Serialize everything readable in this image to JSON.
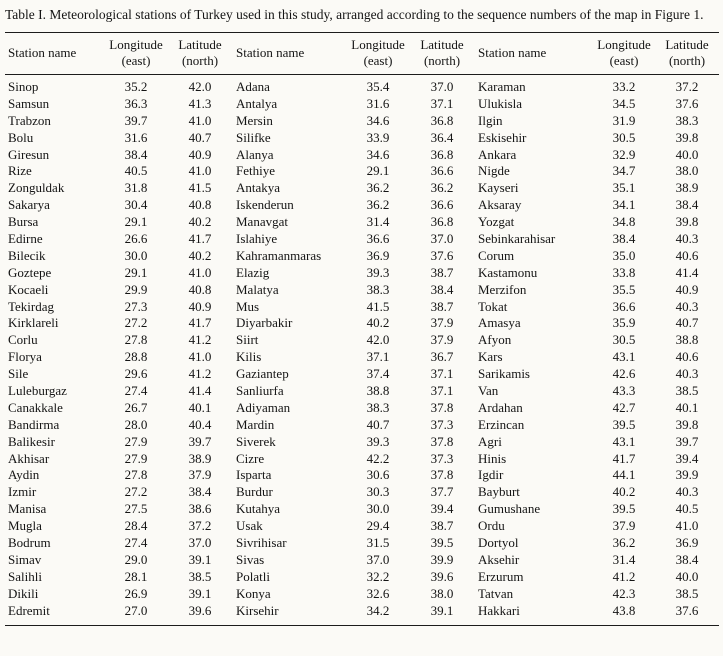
{
  "caption": "Table I. Meteorological stations of Turkey used in this study, arranged according to the sequence numbers of the map in Figure 1.",
  "table": {
    "headers": {
      "station": "Station name",
      "longitude_line1": "Longitude",
      "longitude_line2": "(east)",
      "latitude_line1": "Latitude",
      "latitude_line2": "(north)"
    },
    "groups": [
      {
        "rows": [
          [
            "Sinop",
            "35.2",
            "42.0"
          ],
          [
            "Samsun",
            "36.3",
            "41.3"
          ],
          [
            "Trabzon",
            "39.7",
            "41.0"
          ],
          [
            "Bolu",
            "31.6",
            "40.7"
          ],
          [
            "Giresun",
            "38.4",
            "40.9"
          ],
          [
            "Rize",
            "40.5",
            "41.0"
          ],
          [
            "Zonguldak",
            "31.8",
            "41.5"
          ],
          [
            "Sakarya",
            "30.4",
            "40.8"
          ],
          [
            "Bursa",
            "29.1",
            "40.2"
          ],
          [
            "Edirne",
            "26.6",
            "41.7"
          ],
          [
            "Bilecik",
            "30.0",
            "40.2"
          ],
          [
            "Goztepe",
            "29.1",
            "41.0"
          ],
          [
            "Kocaeli",
            "29.9",
            "40.8"
          ],
          [
            "Tekirdag",
            "27.3",
            "40.9"
          ],
          [
            "Kirklareli",
            "27.2",
            "41.7"
          ],
          [
            "Corlu",
            "27.8",
            "41.2"
          ],
          [
            "Florya",
            "28.8",
            "41.0"
          ],
          [
            "Sile",
            "29.6",
            "41.2"
          ],
          [
            "Luleburgaz",
            "27.4",
            "41.4"
          ],
          [
            "Canakkale",
            "26.7",
            "40.1"
          ],
          [
            "Bandirma",
            "28.0",
            "40.4"
          ],
          [
            "Balikesir",
            "27.9",
            "39.7"
          ],
          [
            "Akhisar",
            "27.9",
            "38.9"
          ],
          [
            "Aydin",
            "27.8",
            "37.9"
          ],
          [
            "Izmir",
            "27.2",
            "38.4"
          ],
          [
            "Manisa",
            "27.5",
            "38.6"
          ],
          [
            "Mugla",
            "28.4",
            "37.2"
          ],
          [
            "Bodrum",
            "27.4",
            "37.0"
          ],
          [
            "Simav",
            "29.0",
            "39.1"
          ],
          [
            "Salihli",
            "28.1",
            "38.5"
          ],
          [
            "Dikili",
            "26.9",
            "39.1"
          ],
          [
            "Edremit",
            "27.0",
            "39.6"
          ]
        ]
      },
      {
        "rows": [
          [
            "Adana",
            "35.4",
            "37.0"
          ],
          [
            "Antalya",
            "31.6",
            "37.1"
          ],
          [
            "Mersin",
            "34.6",
            "36.8"
          ],
          [
            "Silifke",
            "33.9",
            "36.4"
          ],
          [
            "Alanya",
            "34.6",
            "36.8"
          ],
          [
            "Fethiye",
            "29.1",
            "36.6"
          ],
          [
            "Antakya",
            "36.2",
            "36.2"
          ],
          [
            "Iskenderun",
            "36.2",
            "36.6"
          ],
          [
            "Manavgat",
            "31.4",
            "36.8"
          ],
          [
            "Islahiye",
            "36.6",
            "37.0"
          ],
          [
            "Kahramanmaras",
            "36.9",
            "37.6"
          ],
          [
            "Elazig",
            "39.3",
            "38.7"
          ],
          [
            "Malatya",
            "38.3",
            "38.4"
          ],
          [
            "Mus",
            "41.5",
            "38.7"
          ],
          [
            "Diyarbakir",
            "40.2",
            "37.9"
          ],
          [
            "Siirt",
            "42.0",
            "37.9"
          ],
          [
            "Kilis",
            "37.1",
            "36.7"
          ],
          [
            "Gaziantep",
            "37.4",
            "37.1"
          ],
          [
            "Sanliurfa",
            "38.8",
            "37.1"
          ],
          [
            "Adiyaman",
            "38.3",
            "37.8"
          ],
          [
            "Mardin",
            "40.7",
            "37.3"
          ],
          [
            "Siverek",
            "39.3",
            "37.8"
          ],
          [
            "Cizre",
            "42.2",
            "37.3"
          ],
          [
            "Isparta",
            "30.6",
            "37.8"
          ],
          [
            "Burdur",
            "30.3",
            "37.7"
          ],
          [
            "Kutahya",
            "30.0",
            "39.4"
          ],
          [
            "Usak",
            "29.4",
            "38.7"
          ],
          [
            "Sivrihisar",
            "31.5",
            "39.5"
          ],
          [
            "Sivas",
            "37.0",
            "39.9"
          ],
          [
            "Polatli",
            "32.2",
            "39.6"
          ],
          [
            "Konya",
            "32.6",
            "38.0"
          ],
          [
            "Kirsehir",
            "34.2",
            "39.1"
          ]
        ]
      },
      {
        "rows": [
          [
            "Karaman",
            "33.2",
            "37.2"
          ],
          [
            "Ulukisla",
            "34.5",
            "37.6"
          ],
          [
            "Ilgin",
            "31.9",
            "38.3"
          ],
          [
            "Eskisehir",
            "30.5",
            "39.8"
          ],
          [
            "Ankara",
            "32.9",
            "40.0"
          ],
          [
            "Nigde",
            "34.7",
            "38.0"
          ],
          [
            "Kayseri",
            "35.1",
            "38.9"
          ],
          [
            "Aksaray",
            "34.1",
            "38.4"
          ],
          [
            "Yozgat",
            "34.8",
            "39.8"
          ],
          [
            "Sebinkarahisar",
            "38.4",
            "40.3"
          ],
          [
            "Corum",
            "35.0",
            "40.6"
          ],
          [
            "Kastamonu",
            "33.8",
            "41.4"
          ],
          [
            "Merzifon",
            "35.5",
            "40.9"
          ],
          [
            "Tokat",
            "36.6",
            "40.3"
          ],
          [
            "Amasya",
            "35.9",
            "40.7"
          ],
          [
            "Afyon",
            "30.5",
            "38.8"
          ],
          [
            "Kars",
            "43.1",
            "40.6"
          ],
          [
            "Sarikamis",
            "42.6",
            "40.3"
          ],
          [
            "Van",
            "43.3",
            "38.5"
          ],
          [
            "Ardahan",
            "42.7",
            "40.1"
          ],
          [
            "Erzincan",
            "39.5",
            "39.8"
          ],
          [
            "Agri",
            "43.1",
            "39.7"
          ],
          [
            "Hinis",
            "41.7",
            "39.4"
          ],
          [
            "Igdir",
            "44.1",
            "39.9"
          ],
          [
            "Bayburt",
            "40.2",
            "40.3"
          ],
          [
            "Gumushane",
            "39.5",
            "40.5"
          ],
          [
            "Ordu",
            "37.9",
            "41.0"
          ],
          [
            "Dortyol",
            "36.2",
            "36.9"
          ],
          [
            "Aksehir",
            "31.4",
            "38.4"
          ],
          [
            "Erzurum",
            "41.2",
            "40.0"
          ],
          [
            "Tatvan",
            "42.3",
            "38.5"
          ],
          [
            "Hakkari",
            "43.8",
            "37.6"
          ]
        ]
      }
    ]
  }
}
